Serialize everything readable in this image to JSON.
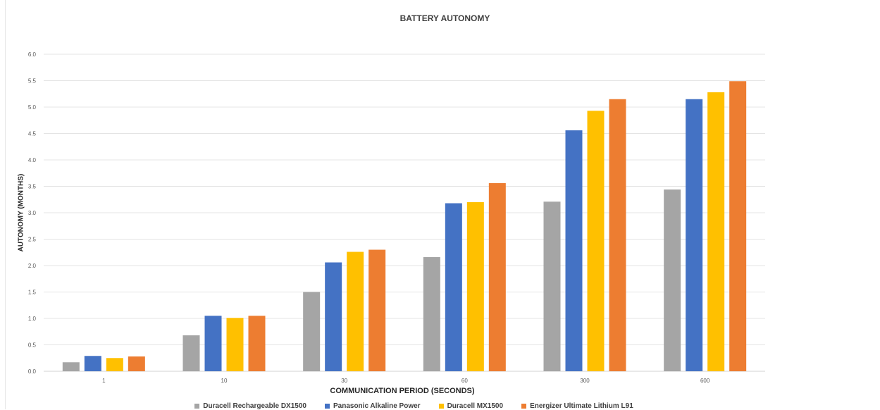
{
  "chart_data": {
    "type": "bar",
    "title": "BATTERY AUTONOMY",
    "xlabel": "COMMUNICATION PERIOD (SECONDS)",
    "ylabel": "AUTONOMY (MONTHS)",
    "categories": [
      "1",
      "10",
      "30",
      "60",
      "300",
      "600"
    ],
    "ylim": [
      0,
      6.0
    ],
    "yticks": [
      "0.0",
      "0.5",
      "1.0",
      "1.5",
      "2.0",
      "2.5",
      "3.0",
      "3.5",
      "4.0",
      "4.5",
      "5.0",
      "5.5",
      "6.0"
    ],
    "grid": true,
    "legend_position": "bottom",
    "series": [
      {
        "name": "Duracell Rechargeable DX1500",
        "color": "#A5A5A5",
        "values": [
          0.17,
          0.68,
          1.5,
          2.16,
          3.21,
          3.44
        ]
      },
      {
        "name": "Panasonic Alkaline Power",
        "color": "#4472C4",
        "values": [
          0.29,
          1.05,
          2.06,
          3.18,
          4.56,
          5.15
        ]
      },
      {
        "name": "Duracell MX1500",
        "color": "#FFC000",
        "values": [
          0.25,
          1.01,
          2.26,
          3.2,
          4.93,
          5.28
        ]
      },
      {
        "name": "Energizer Ultimate Lithium L91",
        "color": "#ED7D31",
        "values": [
          0.28,
          1.05,
          2.3,
          3.56,
          5.15,
          5.49
        ]
      }
    ]
  }
}
